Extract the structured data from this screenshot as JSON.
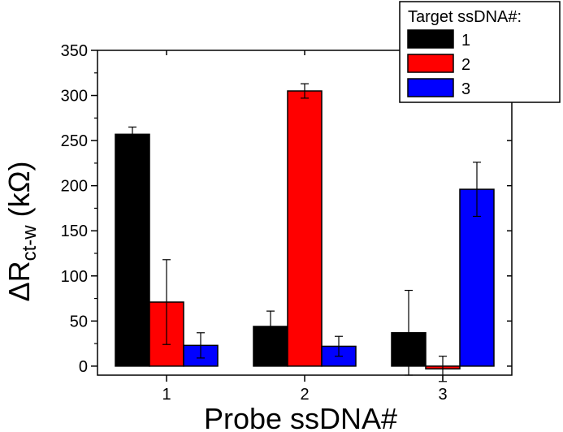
{
  "chart_data": {
    "type": "bar",
    "categories": [
      "1",
      "2",
      "3"
    ],
    "xlabel": "Probe ssDNA#",
    "ylabel_main": "ΔR",
    "ylabel_sub": "ct-w",
    "ylabel_unit": " (kΩ)",
    "ylim": [
      -10,
      350
    ],
    "yticks": [
      0,
      50,
      100,
      150,
      200,
      250,
      300,
      350
    ],
    "legend": {
      "title": "Target ssDNA#:",
      "placement": "top-right"
    },
    "series": [
      {
        "name": "1",
        "color": "#000000",
        "values": [
          257,
          44,
          37
        ],
        "errors": [
          8,
          17,
          47
        ]
      },
      {
        "name": "2",
        "color": "#ff0000",
        "values": [
          71,
          305,
          -3
        ],
        "errors": [
          47,
          8,
          14
        ]
      },
      {
        "name": "3",
        "color": "#0000ff",
        "values": [
          23,
          22,
          196
        ],
        "errors": [
          14,
          11,
          30
        ]
      }
    ]
  }
}
